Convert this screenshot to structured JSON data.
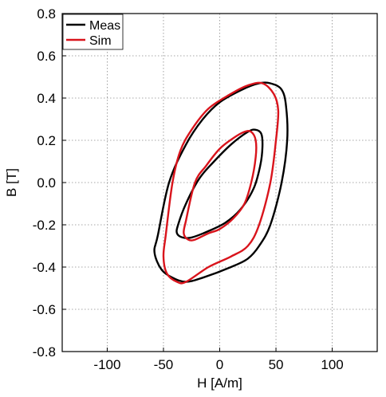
{
  "chart_data": {
    "type": "line",
    "title": "",
    "xlabel": "H [A/m]",
    "ylabel": "B [T]",
    "xlim": [
      -140,
      140
    ],
    "ylim": [
      -0.8,
      0.8
    ],
    "xticks": [
      -100,
      -50,
      0,
      50,
      100
    ],
    "xtick_labels": [
      "-100",
      "-50",
      "0",
      "50",
      "100"
    ],
    "yticks": [
      -0.8,
      -0.6,
      -0.4,
      -0.2,
      0.0,
      0.2,
      0.4,
      0.6,
      0.8
    ],
    "ytick_labels": [
      "-0.8",
      "-0.6",
      "-0.4",
      "-0.2",
      "0.0",
      "0.2",
      "0.4",
      "0.6",
      "0.8"
    ],
    "grid": true,
    "legend_position": "top-left",
    "series": [
      {
        "name": "Meas",
        "color": "#000000",
        "loops": [
          [
            [
              -55,
              -0.25
            ],
            [
              -58,
              -0.33
            ],
            [
              -52,
              -0.41
            ],
            [
              -42,
              -0.45
            ],
            [
              -30,
              -0.47
            ],
            [
              -15,
              -0.45
            ],
            [
              10,
              -0.4
            ],
            [
              25,
              -0.36
            ],
            [
              35,
              -0.3
            ],
            [
              45,
              -0.2
            ],
            [
              55,
              0.0
            ],
            [
              60,
              0.2
            ],
            [
              59,
              0.36
            ],
            [
              55,
              0.44
            ],
            [
              45,
              0.47
            ],
            [
              35,
              0.47
            ],
            [
              20,
              0.44
            ],
            [
              0,
              0.38
            ],
            [
              -15,
              0.3
            ],
            [
              -30,
              0.18
            ],
            [
              -45,
              0.0
            ],
            [
              -55,
              -0.25
            ]
          ],
          [
            [
              -37,
              -0.2
            ],
            [
              -38,
              -0.24
            ],
            [
              -33,
              -0.26
            ],
            [
              -25,
              -0.26
            ],
            [
              -10,
              -0.23
            ],
            [
              5,
              -0.19
            ],
            [
              18,
              -0.13
            ],
            [
              30,
              -0.03
            ],
            [
              36,
              0.08
            ],
            [
              38,
              0.17
            ],
            [
              37,
              0.23
            ],
            [
              32,
              0.25
            ],
            [
              25,
              0.24
            ],
            [
              10,
              0.18
            ],
            [
              -5,
              0.1
            ],
            [
              -18,
              0.02
            ],
            [
              -30,
              -0.1
            ],
            [
              -37,
              -0.2
            ]
          ]
        ]
      },
      {
        "name": "Sim",
        "color": "#d9141c",
        "loops": [
          [
            [
              -48,
              -0.25
            ],
            [
              -50,
              -0.35
            ],
            [
              -47,
              -0.43
            ],
            [
              -38,
              -0.47
            ],
            [
              -30,
              -0.47
            ],
            [
              -10,
              -0.4
            ],
            [
              10,
              -0.35
            ],
            [
              25,
              -0.3
            ],
            [
              35,
              -0.2
            ],
            [
              45,
              0.0
            ],
            [
              50,
              0.2
            ],
            [
              52,
              0.34
            ],
            [
              48,
              0.42
            ],
            [
              38,
              0.47
            ],
            [
              25,
              0.46
            ],
            [
              10,
              0.42
            ],
            [
              -10,
              0.35
            ],
            [
              -25,
              0.25
            ],
            [
              -35,
              0.15
            ],
            [
              -42,
              0.0
            ],
            [
              -48,
              -0.25
            ]
          ],
          [
            [
              -30,
              -0.18
            ],
            [
              -32,
              -0.24
            ],
            [
              -28,
              -0.27
            ],
            [
              -22,
              -0.27
            ],
            [
              -10,
              -0.24
            ],
            [
              0,
              -0.22
            ],
            [
              12,
              -0.17
            ],
            [
              22,
              -0.1
            ],
            [
              28,
              0.0
            ],
            [
              32,
              0.12
            ],
            [
              32,
              0.2
            ],
            [
              28,
              0.24
            ],
            [
              22,
              0.24
            ],
            [
              12,
              0.21
            ],
            [
              0,
              0.16
            ],
            [
              -12,
              0.08
            ],
            [
              -22,
              0.0
            ],
            [
              -30,
              -0.18
            ]
          ]
        ]
      }
    ]
  }
}
